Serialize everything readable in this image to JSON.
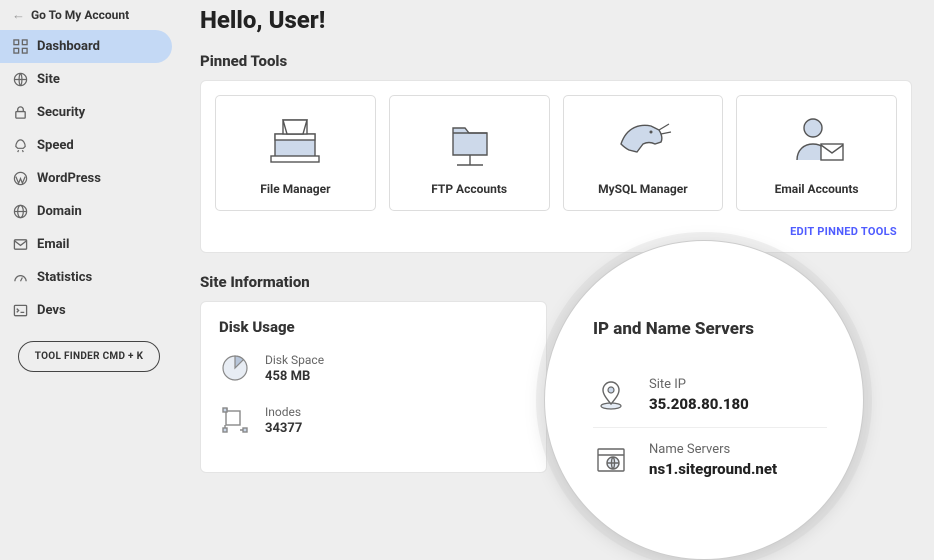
{
  "back_link": "Go To My Account",
  "nav": [
    {
      "label": "Dashboard",
      "icon": "grid",
      "active": true
    },
    {
      "label": "Site",
      "icon": "globe",
      "active": false
    },
    {
      "label": "Security",
      "icon": "lock",
      "active": false
    },
    {
      "label": "Speed",
      "icon": "rocket",
      "active": false
    },
    {
      "label": "WordPress",
      "icon": "wordpress",
      "active": false
    },
    {
      "label": "Domain",
      "icon": "world",
      "active": false
    },
    {
      "label": "Email",
      "icon": "mail",
      "active": false
    },
    {
      "label": "Statistics",
      "icon": "gauge",
      "active": false
    },
    {
      "label": "Devs",
      "icon": "terminal",
      "active": false
    }
  ],
  "tool_finder": "TOOL FINDER CMD + K",
  "greeting": "Hello, User!",
  "pinned_title": "Pinned Tools",
  "pinned_tools": [
    {
      "label": "File Manager",
      "icon": "filemanager"
    },
    {
      "label": "FTP Accounts",
      "icon": "ftp"
    },
    {
      "label": "MySQL Manager",
      "icon": "mysql"
    },
    {
      "label": "Email Accounts",
      "icon": "emailacct"
    }
  ],
  "edit_pinned": "EDIT PINNED TOOLS",
  "site_info_title": "Site Information",
  "disk_usage": {
    "title": "Disk Usage",
    "rows": [
      {
        "label": "Disk Space",
        "value": "458 MB",
        "icon": "pie"
      },
      {
        "label": "Inodes",
        "value": "34377",
        "icon": "inode"
      }
    ]
  },
  "ip_card": {
    "title": "IP and Name Servers",
    "rows": [
      {
        "label": "Site IP",
        "value": "35.208.80.180",
        "icon": "pin"
      },
      {
        "label": "Name Servers",
        "value": "ns1.siteground.net",
        "icon": "browser"
      }
    ]
  },
  "colors": {
    "bg": "#eeeeee",
    "card": "#ffffff",
    "active_nav": "#c4d9f5",
    "link": "#4f5cff",
    "icon_stroke": "#6b7280",
    "icon_fill": "#cdd9ea"
  }
}
